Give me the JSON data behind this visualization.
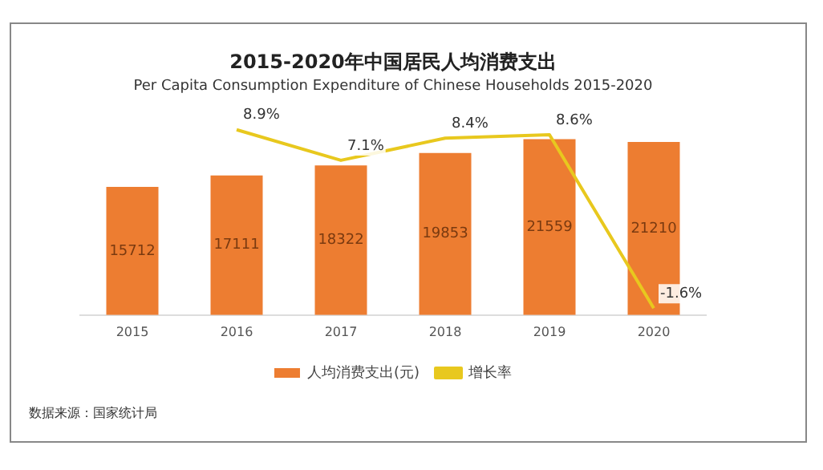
{
  "chart_data": {
    "type": "bar",
    "title": "2015-2020年中国居民人均消费支出",
    "subtitle": "Per Capita Consumption Expenditure of Chinese Households 2015-2020",
    "categories": [
      "2015",
      "2016",
      "2017",
      "2018",
      "2019",
      "2020"
    ],
    "series": [
      {
        "name": "人均消费支出(元)",
        "color": "#ed7d31",
        "values": [
          15712,
          17111,
          18322,
          19853,
          21559,
          21210
        ]
      },
      {
        "name": "增长率",
        "type": "line",
        "axis": "y2",
        "color": "#e8c81e",
        "values": [
          null,
          8.9,
          7.1,
          8.4,
          8.6,
          -1.6
        ],
        "value_labels": [
          null,
          "8.9%",
          "7.1%",
          "8.4%",
          "8.6%",
          "-1.6%"
        ]
      }
    ],
    "data_labels": true,
    "grid": false,
    "legend": "bottom",
    "marker": "none",
    "line_style": "solid",
    "annotations": [
      "数据来源：国家统计局"
    ]
  }
}
